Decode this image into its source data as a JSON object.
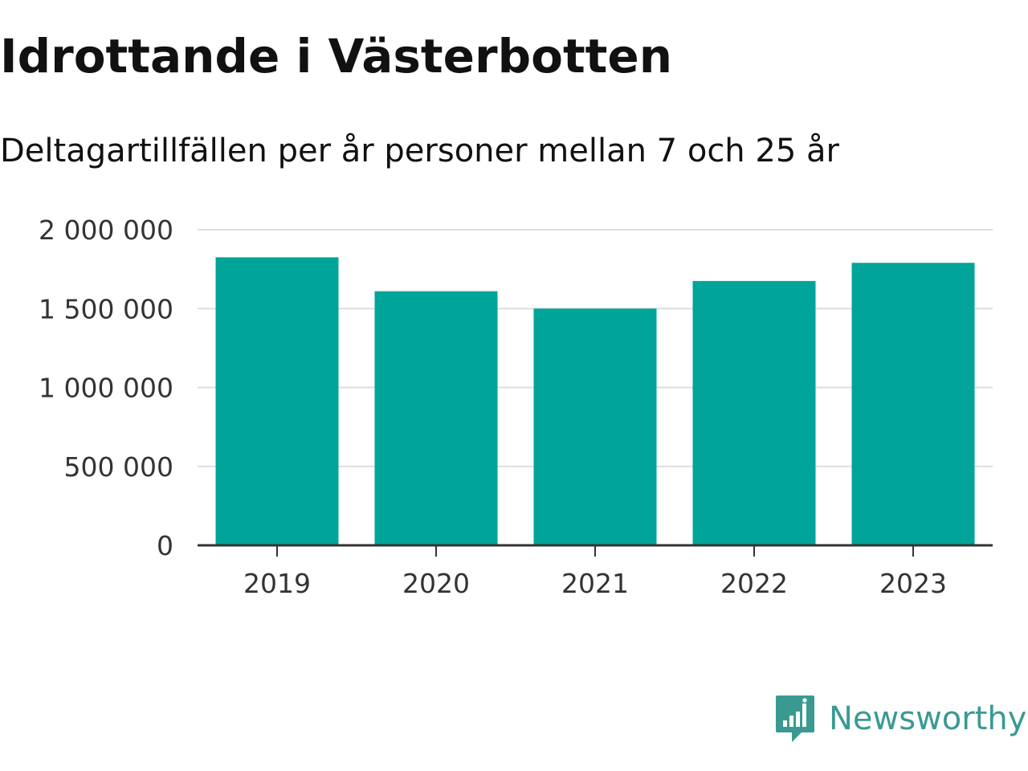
{
  "header": {
    "title": "Idrottande i Västerbotten",
    "subtitle": "Deltagartillfällen per år personer mellan 7 och 25 år"
  },
  "chart_data": {
    "type": "bar",
    "categories": [
      "2019",
      "2020",
      "2021",
      "2022",
      "2023"
    ],
    "values": [
      1825000,
      1610000,
      1500000,
      1675000,
      1790000
    ],
    "title": "Idrottande i Västerbotten",
    "subtitle": "Deltagartillfällen per år personer mellan 7 och 25 år",
    "xlabel": "",
    "ylabel": "",
    "ylim": [
      0,
      2000000
    ],
    "yticks": [
      0,
      500000,
      1000000,
      1500000,
      2000000
    ],
    "ytick_labels": [
      "0",
      "500 000",
      "1 000 000",
      "1 500 000",
      "2 000 000"
    ],
    "grid": true,
    "bar_color": "#00a499",
    "grid_color": "#dddddd",
    "axis_color": "#333333"
  },
  "brand": {
    "name": "Newsworthy",
    "icon": "newsworthy-logo-icon",
    "color": "#3a9a92"
  }
}
